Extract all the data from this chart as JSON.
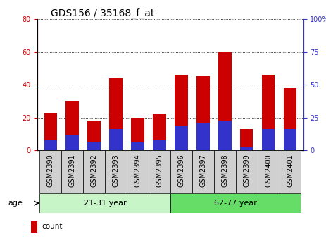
{
  "title": "GDS156 / 35168_f_at",
  "samples": [
    "GSM2390",
    "GSM2391",
    "GSM2392",
    "GSM2393",
    "GSM2394",
    "GSM2395",
    "GSM2396",
    "GSM2397",
    "GSM2398",
    "GSM2399",
    "GSM2400",
    "GSM2401"
  ],
  "counts": [
    23,
    30,
    18,
    44,
    20,
    22,
    46,
    45,
    60,
    13,
    46,
    38
  ],
  "percentiles": [
    6,
    9,
    5,
    13,
    5,
    6,
    15,
    17,
    18,
    2,
    13,
    13
  ],
  "group1_label": "21-31 year",
  "group2_label": "62-77 year",
  "group1_indices": [
    0,
    1,
    2,
    3,
    4,
    5
  ],
  "group2_indices": [
    6,
    7,
    8,
    9,
    10,
    11
  ],
  "age_label": "age",
  "ylim_left": [
    0,
    80
  ],
  "ylim_right": [
    0,
    100
  ],
  "yticks_left": [
    0,
    20,
    40,
    60,
    80
  ],
  "yticks_right": [
    0,
    25,
    50,
    75,
    100
  ],
  "ytick_labels_right": [
    "0",
    "25",
    "50",
    "75",
    "100%"
  ],
  "color_count": "#cc0000",
  "color_percentile": "#3333cc",
  "color_group1": "#c8f5c8",
  "color_group2": "#66dd66",
  "color_sample_bg": "#d0d0d0",
  "title_fontsize": 10,
  "tick_fontsize": 7,
  "label_fontsize": 7,
  "bar_width": 0.6
}
